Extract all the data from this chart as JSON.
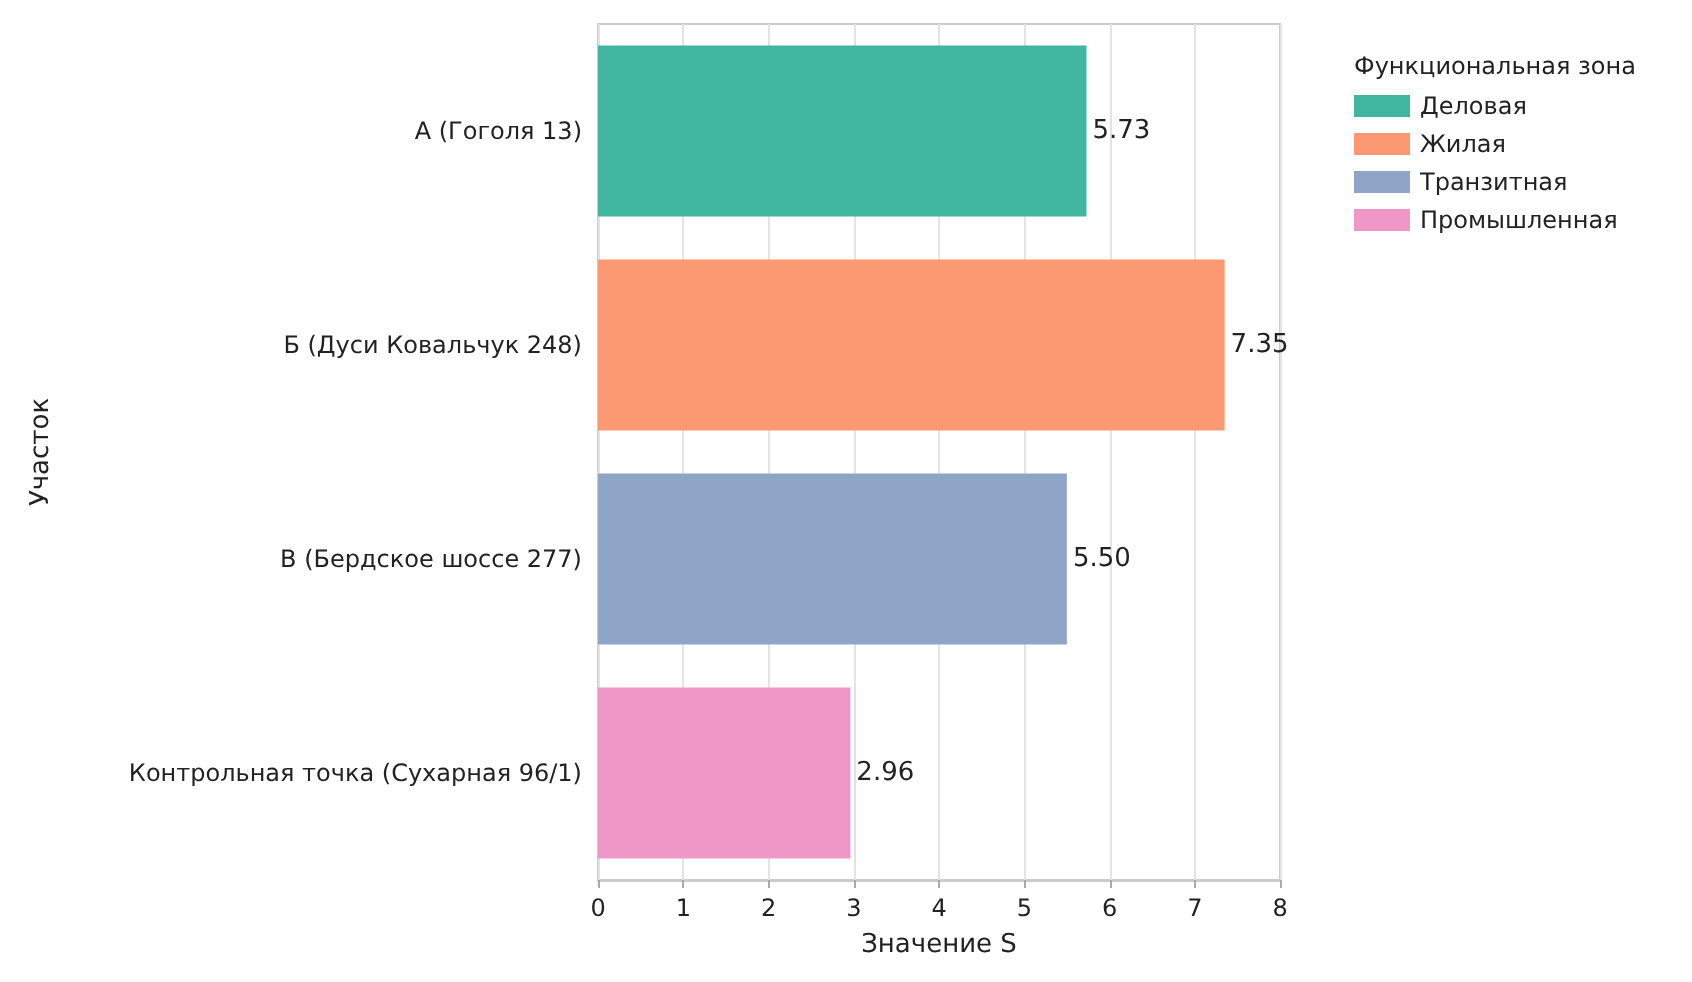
{
  "chart_data": {
    "type": "bar",
    "orientation": "horizontal",
    "stacked": true,
    "xlabel": "Значение S",
    "ylabel": "Участок",
    "legend_title": "Функциональная зона",
    "categories": [
      "А (Гоголя 13)",
      "Б (Дуси Ковальчук 248)",
      "В (Бердское шоссе 277)",
      "Контрольная точка (Сухарная 96/1)"
    ],
    "series": [
      {
        "name": "Деловая",
        "color": "#40b5a0",
        "values": [
          5.73,
          null,
          null,
          null
        ]
      },
      {
        "name": "Жилая",
        "color": "#fc9872",
        "values": [
          null,
          7.35,
          null,
          null
        ]
      },
      {
        "name": "Транзитная",
        "color": "#8fa5c8",
        "values": [
          null,
          null,
          5.5,
          null
        ]
      },
      {
        "name": "Промышленная",
        "color": "#ef97c6",
        "values": [
          null,
          null,
          null,
          2.96
        ]
      }
    ],
    "value_labels": [
      "5.73",
      "7.35",
      "5.50",
      "2.96"
    ],
    "xlim": [
      0,
      8
    ],
    "xticks": [
      0,
      1,
      2,
      3,
      4,
      5,
      6,
      7,
      8
    ],
    "grid": "x",
    "legend": "top right"
  }
}
